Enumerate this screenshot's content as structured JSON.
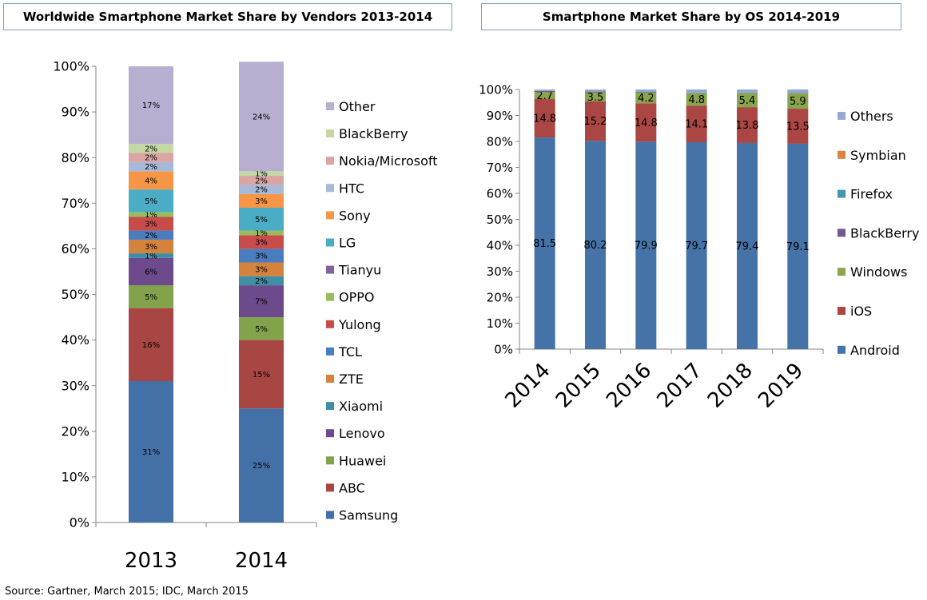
{
  "source_note": "Source: Gartner, March 2015;  IDC, March 2015",
  "chart_data": [
    {
      "type": "bar",
      "stacked": true,
      "title": "Worldwide Smartphone Market Share by Vendors 2013-2014",
      "categories": [
        "2013",
        "2014"
      ],
      "ylim": [
        0,
        100
      ],
      "yticks": [
        "0%",
        "10%",
        "20%",
        "30%",
        "40%",
        "50%",
        "60%",
        "70%",
        "80%",
        "90%",
        "100%"
      ],
      "legend_position": "right",
      "series": [
        {
          "name": "Samsung",
          "color": "#4470a8",
          "values": [
            31,
            25
          ],
          "labels": [
            "31%",
            "25%"
          ]
        },
        {
          "name": "ABC",
          "color": "#a84644",
          "values": [
            16,
            15
          ],
          "labels": [
            "16%",
            "15%"
          ]
        },
        {
          "name": "Huawei",
          "color": "#82a24c",
          "values": [
            5,
            5
          ],
          "labels": [
            "5%",
            "5%"
          ]
        },
        {
          "name": "Lenovo",
          "color": "#6c4a8c",
          "values": [
            6,
            7
          ],
          "labels": [
            "6%",
            "7%"
          ]
        },
        {
          "name": "Xiaomi",
          "color": "#3e8fa5",
          "values": [
            1,
            2
          ],
          "labels": [
            "1%",
            "2%"
          ]
        },
        {
          "name": "ZTE",
          "color": "#d4823c",
          "values": [
            3,
            3
          ],
          "labels": [
            "3%",
            "3%"
          ]
        },
        {
          "name": "TCL",
          "color": "#4a7cc0",
          "values": [
            2,
            3
          ],
          "labels": [
            "2%",
            "3%"
          ]
        },
        {
          "name": "Yulong",
          "color": "#c84c4a",
          "values": [
            3,
            3
          ],
          "labels": [
            "3%",
            "3%"
          ]
        },
        {
          "name": "OPPO",
          "color": "#9abb59",
          "values": [
            1,
            1
          ],
          "labels": [
            "1%",
            "1%"
          ]
        },
        {
          "name": "Tianyu",
          "color": "#8064a2",
          "values": [
            0,
            0
          ],
          "labels": [
            "",
            ""
          ]
        },
        {
          "name": "LG",
          "color": "#4bacc6",
          "values": [
            5,
            5
          ],
          "labels": [
            "5%",
            "5%"
          ]
        },
        {
          "name": "Sony",
          "color": "#f79646",
          "values": [
            4,
            3
          ],
          "labels": [
            "4%",
            "3%"
          ]
        },
        {
          "name": "HTC",
          "color": "#a7b9d9",
          "values": [
            2,
            2
          ],
          "labels": [
            "2%",
            "2%"
          ]
        },
        {
          "name": "Nokia/Microsoft",
          "color": "#dba5a4",
          "values": [
            2,
            2
          ],
          "labels": [
            "2%",
            "2%"
          ]
        },
        {
          "name": "BlackBerry",
          "color": "#c4d8a4",
          "values": [
            2,
            1
          ],
          "labels": [
            "2%",
            "1%"
          ]
        },
        {
          "name": "Other",
          "color": "#b7aed0",
          "values": [
            17,
            24
          ],
          "labels": [
            "17%",
            "24%"
          ]
        }
      ]
    },
    {
      "type": "bar",
      "stacked": true,
      "title": "Smartphone Market Share by OS 2014-2019",
      "categories": [
        "2014",
        "2015",
        "2016",
        "2017",
        "2018",
        "2019"
      ],
      "ylim": [
        0,
        100
      ],
      "yticks": [
        "0%",
        "10%",
        "20%",
        "30%",
        "40%",
        "50%",
        "60%",
        "70%",
        "80%",
        "90%",
        "100%"
      ],
      "legend_position": "right",
      "series": [
        {
          "name": "Android",
          "color": "#4572a7",
          "values": [
            81.5,
            80.2,
            79.9,
            79.7,
            79.4,
            79.1
          ],
          "labels": [
            "81.5",
            "80.2",
            "79.9",
            "79.7",
            "79.4",
            "79.1"
          ]
        },
        {
          "name": "iOS",
          "color": "#aa4643",
          "values": [
            14.8,
            15.2,
            14.8,
            14.1,
            13.8,
            13.5
          ],
          "labels": [
            "14.8",
            "15.2",
            "14.8",
            "14.1",
            "13.8",
            "13.5"
          ]
        },
        {
          "name": "Windows",
          "color": "#89a54e",
          "values": [
            2.7,
            3.5,
            4.2,
            4.8,
            5.4,
            5.9
          ],
          "labels": [
            "2.7",
            "3.5",
            "4.2",
            "4.8",
            "5.4",
            "5.9"
          ]
        },
        {
          "name": "BlackBerry",
          "color": "#71588f",
          "values": [
            0.4,
            0.3,
            0.2,
            0.1,
            0.1,
            0.1
          ],
          "labels": [
            "",
            "",
            "",
            "",
            "",
            ""
          ]
        },
        {
          "name": "Firefox",
          "color": "#4198af",
          "values": [
            0.1,
            0.1,
            0.1,
            0.1,
            0.1,
            0.1
          ],
          "labels": [
            "",
            "",
            "",
            "",
            "",
            ""
          ]
        },
        {
          "name": "Symbian",
          "color": "#db843d",
          "values": [
            0.1,
            0,
            0,
            0,
            0,
            0
          ],
          "labels": [
            "",
            "",
            "",
            "",
            "",
            ""
          ]
        },
        {
          "name": "Others",
          "color": "#93a9cf",
          "values": [
            0.4,
            0.7,
            0.8,
            1.2,
            1.2,
            1.3
          ],
          "labels": [
            "",
            "",
            "",
            "",
            "",
            ""
          ]
        }
      ]
    }
  ]
}
